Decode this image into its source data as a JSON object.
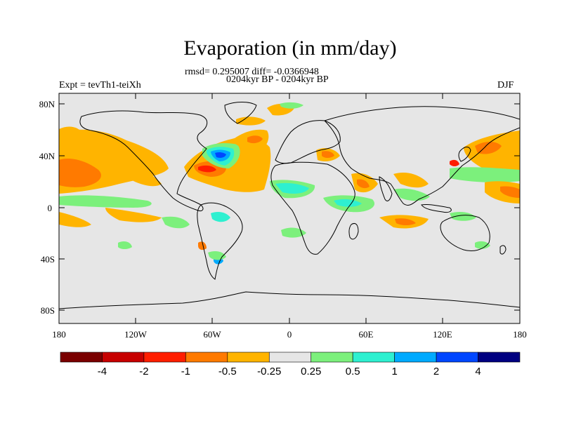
{
  "title": "Evaporation (in mm/day)",
  "stats": "rmsd= 0.295007 diff= -0.0366948",
  "period": "0204kyr BP - 0204kyr BP",
  "experiment": "Expt = tevTh1-teiXh",
  "season": "DJF",
  "lat_ticks": [
    "80N",
    "40N",
    "0",
    "40S",
    "80S"
  ],
  "lon_ticks": [
    "180",
    "120W",
    "60W",
    "0",
    "60E",
    "120E",
    "180"
  ],
  "colorbar": {
    "labels": [
      "-4",
      "-2",
      "-1",
      "-0.5",
      "-0.25",
      "0.25",
      "0.5",
      "1",
      "2",
      "4"
    ],
    "colors": [
      "#7a0000",
      "#c70000",
      "#ff1e00",
      "#ff7a00",
      "#ffb400",
      "#e6e6e6",
      "#7cf07c",
      "#2ef0d0",
      "#00aaff",
      "#0046ff",
      "#000080"
    ]
  }
}
